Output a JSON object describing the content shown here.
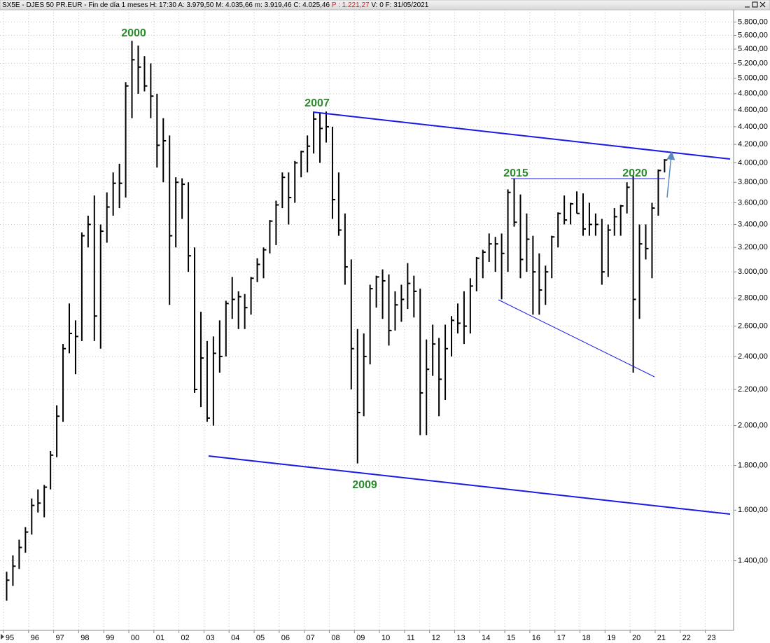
{
  "header": {
    "title": "SX5E - DJES 50 PR.EUR - Fin de día 1 meses  H: 17:30  A: 3.979,50  M: 4.035,66  m: 3.919,46  C: 4.025,46",
    "change": "P : 1.221,27",
    "tail": "V: 0  F: 31/05/2021"
  },
  "chart_data": {
    "type": "ohlc",
    "log_y": true,
    "grid": true,
    "color": "#000000",
    "xlim": [
      1994.86,
      2024.13
    ],
    "ylim": [
      1165,
      5990
    ],
    "xticks": [
      {
        "value": 1995,
        "label": "95"
      },
      {
        "value": 1996,
        "label": "96"
      },
      {
        "value": 1997,
        "label": "97"
      },
      {
        "value": 1998,
        "label": "98"
      },
      {
        "value": 1999,
        "label": "99"
      },
      {
        "value": 2000,
        "label": "00"
      },
      {
        "value": 2001,
        "label": "01"
      },
      {
        "value": 2002,
        "label": "02"
      },
      {
        "value": 2003,
        "label": "03"
      },
      {
        "value": 2004,
        "label": "04"
      },
      {
        "value": 2005,
        "label": "05"
      },
      {
        "value": 2006,
        "label": "06"
      },
      {
        "value": 2007,
        "label": "07"
      },
      {
        "value": 2008,
        "label": "08"
      },
      {
        "value": 2009,
        "label": "09"
      },
      {
        "value": 2010,
        "label": "10"
      },
      {
        "value": 2011,
        "label": "11"
      },
      {
        "value": 2012,
        "label": "12"
      },
      {
        "value": 2013,
        "label": "13"
      },
      {
        "value": 2014,
        "label": "14"
      },
      {
        "value": 2015,
        "label": "15"
      },
      {
        "value": 2016,
        "label": "16"
      },
      {
        "value": 2017,
        "label": "17"
      },
      {
        "value": 2018,
        "label": "18"
      },
      {
        "value": 2019,
        "label": "19"
      },
      {
        "value": 2020,
        "label": "20"
      },
      {
        "value": 2021,
        "label": "21"
      },
      {
        "value": 2022,
        "label": "22"
      },
      {
        "value": 2023,
        "label": "23"
      }
    ],
    "yticks": [
      {
        "value": 1400,
        "label": "1.400,00"
      },
      {
        "value": 1600,
        "label": "1.600,00"
      },
      {
        "value": 1800,
        "label": "1.800,00"
      },
      {
        "value": 2000,
        "label": "2.000,00"
      },
      {
        "value": 2200,
        "label": "2.200,00"
      },
      {
        "value": 2400,
        "label": "2.400,00"
      },
      {
        "value": 2600,
        "label": "2.600,00"
      },
      {
        "value": 2800,
        "label": "2.800,00"
      },
      {
        "value": 3000,
        "label": "3.000,00"
      },
      {
        "value": 3200,
        "label": "3.200,00"
      },
      {
        "value": 3400,
        "label": "3.400,00"
      },
      {
        "value": 3600,
        "label": "3.600,00"
      },
      {
        "value": 3800,
        "label": "3.800,00"
      },
      {
        "value": 4000,
        "label": "4.000,00"
      },
      {
        "value": 4200,
        "label": "4.200,00"
      },
      {
        "value": 4400,
        "label": "4.400,00"
      },
      {
        "value": 4600,
        "label": "4.600,00"
      },
      {
        "value": 4800,
        "label": "4.800,00"
      },
      {
        "value": 5000,
        "label": "5.000,00"
      },
      {
        "value": 5200,
        "label": "5.200,00"
      },
      {
        "value": 5400,
        "label": "5.400,00"
      },
      {
        "value": 5600,
        "label": "5.600,00"
      },
      {
        "value": 5800,
        "label": "5.800,00"
      }
    ],
    "x": [
      1995.125,
      1995.375,
      1995.625,
      1995.875,
      1996.125,
      1996.375,
      1996.625,
      1996.875,
      1997.125,
      1997.375,
      1997.625,
      1997.875,
      1998.125,
      1998.375,
      1998.625,
      1998.875,
      1999.125,
      1999.375,
      1999.625,
      1999.875,
      2000.125,
      2000.375,
      2000.625,
      2000.875,
      2001.125,
      2001.375,
      2001.625,
      2001.875,
      2002.125,
      2002.375,
      2002.625,
      2002.875,
      2003.125,
      2003.375,
      2003.625,
      2003.875,
      2004.125,
      2004.375,
      2004.625,
      2004.875,
      2005.125,
      2005.375,
      2005.625,
      2005.875,
      2006.125,
      2006.375,
      2006.625,
      2006.875,
      2007.125,
      2007.375,
      2007.625,
      2007.875,
      2008.125,
      2008.375,
      2008.625,
      2008.875,
      2009.125,
      2009.375,
      2009.625,
      2009.875,
      2010.125,
      2010.375,
      2010.625,
      2010.875,
      2011.125,
      2011.375,
      2011.625,
      2011.875,
      2012.125,
      2012.375,
      2012.625,
      2012.875,
      2013.125,
      2013.375,
      2013.625,
      2013.875,
      2014.125,
      2014.375,
      2014.625,
      2014.875,
      2015.125,
      2015.375,
      2015.625,
      2015.875,
      2016.125,
      2016.375,
      2016.625,
      2016.875,
      2017.125,
      2017.375,
      2017.625,
      2017.875,
      2018.125,
      2018.375,
      2018.625,
      2018.875,
      2019.125,
      2019.375,
      2019.625,
      2019.875,
      2020.125,
      2020.375,
      2020.625,
      2020.875,
      2021.125,
      2021.375
    ],
    "high": [
      1360,
      1420,
      1480,
      1530,
      1650,
      1690,
      1710,
      1870,
      2110,
      2480,
      2760,
      2640,
      3330,
      3480,
      3670,
      3400,
      3700,
      3900,
      3990,
      4950,
      5520,
      5450,
      5300,
      5200,
      4800,
      4500,
      4300,
      3850,
      3840,
      3800,
      3200,
      2700,
      2500,
      2530,
      2640,
      2780,
      2960,
      2850,
      2830,
      2960,
      3110,
      3200,
      3440,
      3620,
      3900,
      3900,
      4020,
      4130,
      4300,
      4570,
      4560,
      4580,
      4400,
      3900,
      3500,
      3100,
      2580,
      2550,
      2900,
      2970,
      3020,
      2980,
      2850,
      2900,
      3070,
      2970,
      2870,
      2510,
      2610,
      2520,
      2610,
      2670,
      2760,
      2850,
      2950,
      3120,
      3180,
      3320,
      3290,
      3320,
      3730,
      3840,
      3680,
      3500,
      3300,
      3150,
      3050,
      3300,
      3510,
      3670,
      3600,
      3710,
      3690,
      3600,
      3500,
      3450,
      3400,
      3550,
      3580,
      3800,
      3870,
      3400,
      3400,
      3600,
      3930,
      4040
    ],
    "low": [
      1260,
      1310,
      1370,
      1430,
      1500,
      1590,
      1570,
      1690,
      1840,
      2020,
      2420,
      2290,
      2500,
      3200,
      2500,
      2450,
      3240,
      3480,
      3550,
      3650,
      4500,
      4800,
      4830,
      4500,
      3950,
      3800,
      2750,
      3200,
      3450,
      3000,
      2180,
      2100,
      2020,
      2000,
      2300,
      2400,
      2650,
      2580,
      2580,
      2680,
      2920,
      2950,
      3150,
      3220,
      3550,
      3400,
      3600,
      3850,
      3900,
      4100,
      4000,
      4220,
      3450,
      3300,
      2900,
      2200,
      1810,
      2050,
      2350,
      2730,
      2650,
      2470,
      2570,
      2630,
      2720,
      2660,
      1950,
      1950,
      2280,
      2050,
      2140,
      2400,
      2550,
      2480,
      2550,
      2850,
      2950,
      3080,
      3000,
      2790,
      3000,
      3380,
      2950,
      3000,
      2680,
      2680,
      2750,
      2950,
      3200,
      3400,
      3400,
      3500,
      3300,
      3300,
      3300,
      2900,
      2960,
      3300,
      3300,
      3500,
      2300,
      2650,
      3100,
      2950,
      3480,
      3900
    ],
    "close": [
      1330,
      1380,
      1450,
      1510,
      1620,
      1630,
      1700,
      1850,
      2050,
      2450,
      2550,
      2530,
      3300,
      3400,
      2670,
      3340,
      3560,
      3790,
      3790,
      4900,
      5250,
      5150,
      4900,
      4770,
      4190,
      4240,
      3300,
      3800,
      3780,
      3130,
      2200,
      2390,
      2040,
      2420,
      2400,
      2760,
      2790,
      2810,
      2730,
      2950,
      3060,
      3180,
      3430,
      3580,
      3850,
      3650,
      4000,
      4120,
      4180,
      4490,
      4380,
      4400,
      3630,
      3350,
      3040,
      2450,
      2070,
      2400,
      2870,
      2960,
      2930,
      2570,
      2750,
      2790,
      2910,
      2850,
      2180,
      2320,
      2480,
      2260,
      2450,
      2640,
      2620,
      2600,
      2890,
      3110,
      3160,
      3230,
      3230,
      3150,
      3700,
      3420,
      3100,
      3270,
      3000,
      2860,
      3000,
      3290,
      3500,
      3440,
      3590,
      3500,
      3360,
      3400,
      3400,
      3000,
      3350,
      3470,
      3570,
      3750,
      2790,
      3230,
      3190,
      3550,
      3920,
      4030
    ],
    "annotations": [
      "2000",
      "2007",
      "2015",
      "2020",
      "2009"
    ]
  }
}
